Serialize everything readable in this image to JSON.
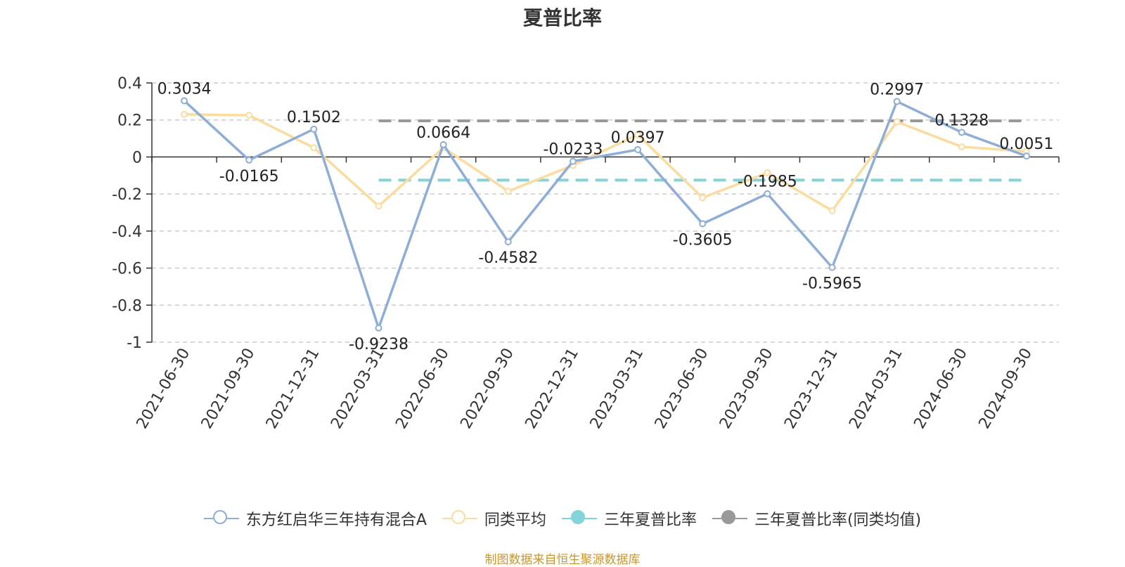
{
  "chart_data": {
    "type": "line",
    "title": "夏普比率",
    "categories": [
      "2021-06-30",
      "2021-09-30",
      "2021-12-31",
      "2022-03-31",
      "2022-06-30",
      "2022-09-30",
      "2022-12-31",
      "2023-03-31",
      "2023-06-30",
      "2023-09-30",
      "2023-12-31",
      "2024-03-31",
      "2024-06-30",
      "2024-09-30"
    ],
    "ylim": [
      -1,
      0.4
    ],
    "yticks": [
      "0.4",
      "0.2",
      "0",
      "-0.2",
      "-0.4",
      "-0.6",
      "-0.8",
      "-1"
    ],
    "grid": true,
    "legend_position": "bottom",
    "series": [
      {
        "name": "东方红启华三年持有混合A",
        "color": "#8eaed8",
        "values": [
          0.3034,
          -0.0165,
          0.1502,
          -0.9238,
          0.0664,
          -0.4582,
          -0.0233,
          0.0397,
          -0.3605,
          -0.1985,
          -0.5965,
          0.2997,
          0.1328,
          0.0051
        ],
        "labels": [
          "0.3034",
          "-0.0165",
          "0.1502",
          "-0.9238",
          "0.0664",
          "-0.4582",
          "-0.0233",
          "0.0397",
          "-0.3605",
          "-0.1985",
          "-0.5965",
          "0.2997",
          "0.1328",
          "0.0051"
        ]
      },
      {
        "name": "同类平均",
        "color": "#fbdc9e",
        "values": [
          0.23,
          0.225,
          0.05,
          -0.265,
          0.05,
          -0.185,
          -0.045,
          0.12,
          -0.22,
          -0.085,
          -0.29,
          0.19,
          0.055,
          0.03
        ]
      },
      {
        "name": "三年夏普比率",
        "color": "#83d4d8",
        "kind": "reference",
        "value": -0.125,
        "from": "2022-03-31",
        "to": "2024-09-30"
      },
      {
        "name": "三年夏普比率(同类均值)",
        "color": "#999999",
        "kind": "reference",
        "value": 0.195,
        "from": "2022-03-31",
        "to": "2024-09-30"
      }
    ]
  },
  "source_text": "制图数据来自恒生聚源数据库"
}
